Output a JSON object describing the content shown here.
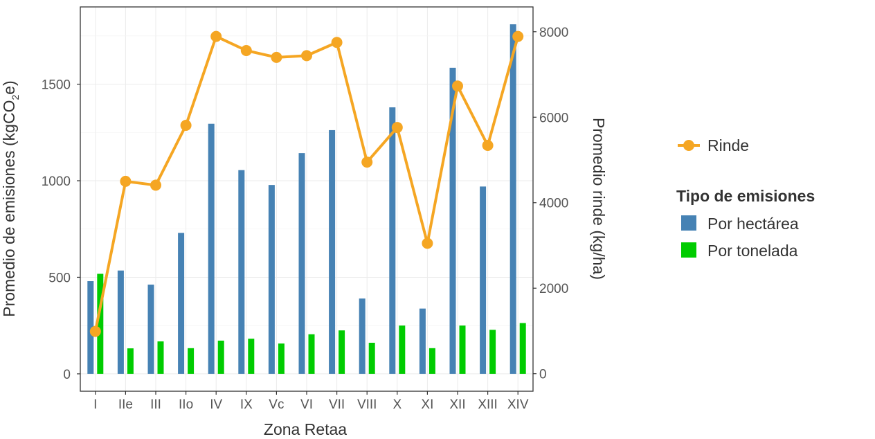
{
  "chart_data": {
    "type": "bar",
    "categories": [
      "I",
      "IIe",
      "III",
      "IIo",
      "IV",
      "IX",
      "Vc",
      "VI",
      "VII",
      "VIII",
      "X",
      "XI",
      "XII",
      "XIII",
      "XIV"
    ],
    "series": [
      {
        "name": "Por hectárea",
        "type": "bar",
        "axis": "left",
        "color": "#4682B4",
        "values": [
          480,
          535,
          462,
          730,
          1295,
          1055,
          978,
          1143,
          1262,
          390,
          1380,
          338,
          1585,
          970,
          1810
        ]
      },
      {
        "name": "Por tonelada",
        "type": "bar",
        "axis": "left",
        "color": "#00CC00",
        "values": [
          518,
          132,
          168,
          133,
          172,
          182,
          157,
          205,
          225,
          161,
          250,
          133,
          250,
          228,
          263
        ]
      },
      {
        "name": "Rinde",
        "type": "line",
        "axis": "right",
        "color": "#F5A623",
        "values": [
          990,
          4500,
          4410,
          5810,
          7890,
          7560,
          7400,
          7440,
          7750,
          4950,
          5760,
          3050,
          6730,
          5340,
          7890
        ]
      }
    ],
    "xlabel": "Zona Retaa",
    "ylabel_main": "Promedio de emisiones (kgCO",
    "ylabel_sub": "2",
    "ylabel_end": "e)",
    "y2label": "Promedio rinde (kg/ha)",
    "ylim": [
      -90,
      1900
    ],
    "yticks": [
      0,
      500,
      1000,
      1500
    ],
    "y2lim": [
      -410,
      8580
    ],
    "y2ticks": [
      0,
      2000,
      4000,
      6000,
      8000
    ],
    "grid": true,
    "legend": {
      "placement": "right",
      "line_entry": "Rinde",
      "title": "Tipo de emisiones",
      "entries": [
        "Por hectárea",
        "Por tonelada"
      ]
    }
  }
}
